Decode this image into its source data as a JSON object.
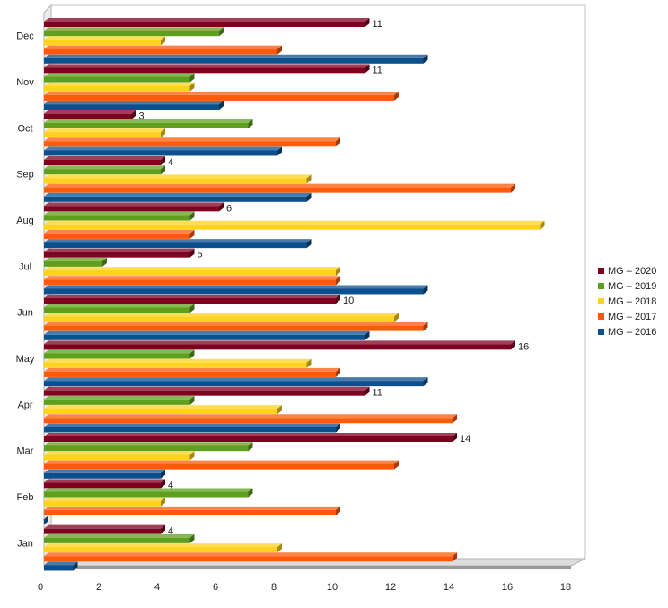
{
  "chart_data": {
    "type": "bar",
    "orientation": "horizontal",
    "style": "3d",
    "categories": [
      "Jan",
      "Feb",
      "Mar",
      "Apr",
      "May",
      "Jun",
      "Jul",
      "Aug",
      "Sep",
      "Oct",
      "Nov",
      "Dec"
    ],
    "series": [
      {
        "name": "MG – 2016",
        "color": "#0b4f8c",
        "values": [
          1,
          0,
          4,
          10,
          13,
          11,
          13,
          9,
          9,
          8,
          6,
          13
        ]
      },
      {
        "name": "MG – 2017",
        "color": "#ff5a0a",
        "values": [
          14,
          10,
          12,
          14,
          10,
          13,
          10,
          5,
          16,
          10,
          12,
          8
        ]
      },
      {
        "name": "MG – 2018",
        "color": "#ffd21e",
        "values": [
          8,
          4,
          5,
          8,
          9,
          12,
          10,
          17,
          9,
          4,
          5,
          4
        ]
      },
      {
        "name": "MG – 2019",
        "color": "#5ea01e",
        "values": [
          5,
          7,
          7,
          5,
          5,
          5,
          2,
          5,
          4,
          7,
          5,
          6
        ]
      },
      {
        "name": "MG – 2020",
        "color": "#800020",
        "values": [
          4,
          4,
          14,
          11,
          16,
          10,
          5,
          6,
          4,
          3,
          11,
          11
        ]
      }
    ],
    "data_labels_series": "MG – 2020",
    "xlim": [
      0,
      18
    ],
    "xticks": [
      0,
      2,
      4,
      6,
      8,
      10,
      12,
      14,
      16,
      18
    ],
    "title": "",
    "xlabel": "",
    "ylabel": "",
    "grid": false,
    "legend_position": "right"
  }
}
